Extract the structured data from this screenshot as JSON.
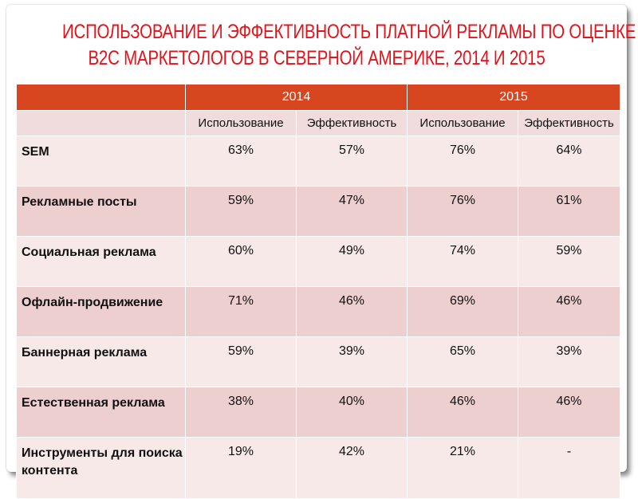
{
  "title_line1": "ИСПОЛЬЗОВАНИЕ И ЭФФЕКТИВНОСТЬ ПЛАТНОЙ РЕКЛАМЫ ПО ОЦЕНКЕ",
  "title_line2": "B2C МАРКЕТОЛОГОВ В СЕВЕРНОЙ АМЕРИКЕ, 2014 И 2015",
  "colors": {
    "title": "#e3131b",
    "header": "#d8461f",
    "row_light": "#f8e9e9",
    "row_dark": "#eecfcf",
    "subheader": "#f0dcdc"
  },
  "chart_data": {
    "type": "table",
    "years": [
      "2014",
      "2015"
    ],
    "metrics": [
      "Использование",
      "Эффективность",
      "Использование",
      "Эффективность"
    ],
    "rows": [
      {
        "label": "SEM",
        "values": [
          "63%",
          "57%",
          "76%",
          "64%"
        ]
      },
      {
        "label": "Рекламные посты",
        "values": [
          "59%",
          "47%",
          "76%",
          "61%"
        ]
      },
      {
        "label": "Социальная реклама",
        "values": [
          "60%",
          "49%",
          "74%",
          "59%"
        ]
      },
      {
        "label": "Офлайн-продвижение",
        "values": [
          "71%",
          "46%",
          "69%",
          "46%"
        ]
      },
      {
        "label": "Баннерная реклама",
        "values": [
          "59%",
          "39%",
          "65%",
          "39%"
        ]
      },
      {
        "label": "Естественная реклама",
        "values": [
          "38%",
          "40%",
          "46%",
          "46%"
        ]
      },
      {
        "label": "Инструменты для поиска контента",
        "values": [
          "19%",
          "42%",
          "21%",
          "-"
        ]
      }
    ]
  }
}
